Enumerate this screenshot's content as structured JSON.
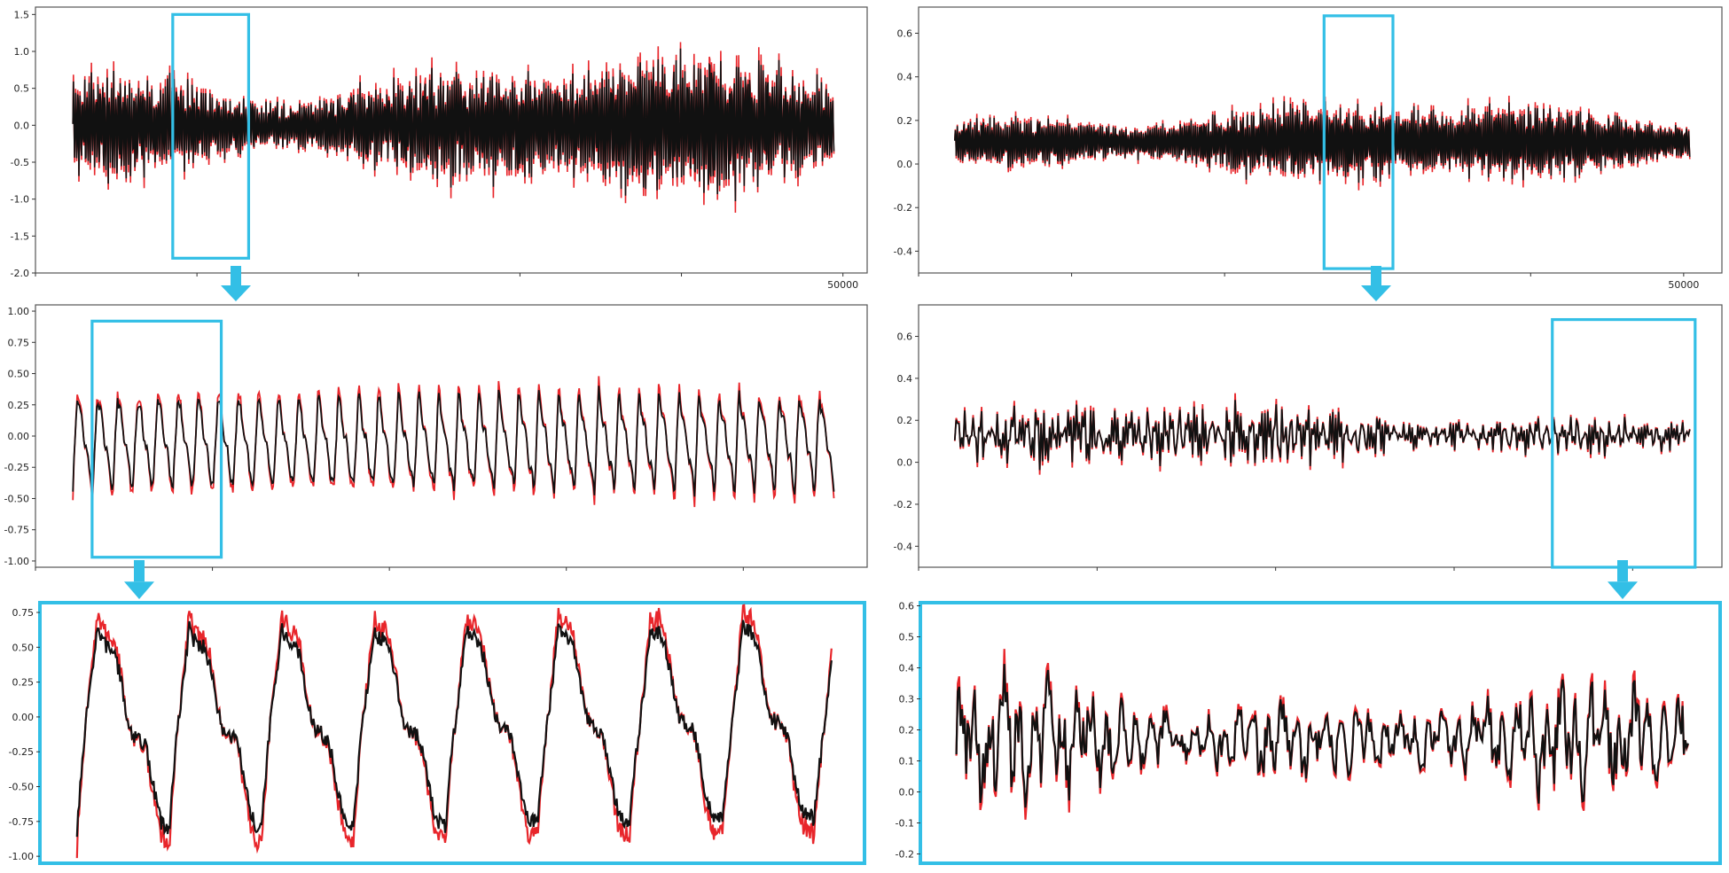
{
  "colors": {
    "prediction": "#e8262b",
    "actual": "#111111",
    "highlight": "#33bfe6",
    "frame": "#555555"
  },
  "chart_data": [
    {
      "id": "left-overview",
      "type": "line",
      "ylim": [
        -2.0,
        1.6
      ],
      "xlim": [
        0,
        51500
      ],
      "yticks": [
        1.5,
        1.0,
        0.5,
        0.0,
        -0.5,
        -1.0,
        -1.5,
        -2.0
      ],
      "ytick_labels": [
        "1.5",
        "1.0",
        "0.5",
        "0.0",
        "-0.5",
        "-1.0",
        "-1.5",
        "-2.0"
      ],
      "xticks": [
        0,
        10000,
        20000,
        30000,
        40000,
        50000
      ],
      "xtick_labels": [
        "",
        "",
        "",
        "",
        "",
        "50000"
      ],
      "signal": {
        "kind": "dense",
        "amp": 0.72,
        "center": 0.0,
        "periods": 340
      },
      "zoom_box": {
        "x": [
          8500,
          13200
        ],
        "y": [
          -1.8,
          1.5
        ]
      },
      "highlighted": false
    },
    {
      "id": "right-overview",
      "type": "line",
      "ylim": [
        -0.5,
        0.72
      ],
      "xlim": [
        0,
        52500
      ],
      "yticks": [
        0.6,
        0.4,
        0.2,
        0.0,
        -0.2,
        -0.4
      ],
      "ytick_labels": [
        "0.6",
        "0.4",
        "0.2",
        "0.0",
        "-0.2",
        "-0.4"
      ],
      "xticks": [
        0,
        10000,
        20000,
        30000,
        40000,
        50000
      ],
      "xtick_labels": [
        "",
        "",
        "",
        "",
        "",
        "50000"
      ],
      "signal": {
        "kind": "dense",
        "amp": 0.14,
        "center": 0.1,
        "periods": 340
      },
      "zoom_box": {
        "x": [
          26500,
          31000
        ],
        "y": [
          -0.48,
          0.68
        ]
      },
      "highlighted": false
    },
    {
      "id": "left-zoom",
      "type": "line",
      "ylim": [
        -1.05,
        1.05
      ],
      "xlim": [
        0,
        4700
      ],
      "yticks": [
        1.0,
        0.75,
        0.5,
        0.25,
        0.0,
        -0.25,
        -0.5,
        -0.75,
        -1.0
      ],
      "ytick_labels": [
        "1.00",
        "0.75",
        "0.50",
        "0.25",
        "0.00",
        "-0.25",
        "-0.50",
        "-0.75",
        "-1.00"
      ],
      "xticks": [
        0,
        1000,
        2000,
        3000,
        4000
      ],
      "xtick_labels": [
        "",
        "",
        "",
        "",
        ""
      ],
      "signal": {
        "kind": "sawtooth",
        "amp": 0.38,
        "center": -0.05,
        "periods": 38
      },
      "zoom_box": {
        "x": [
          320,
          1050
        ],
        "y": [
          -0.97,
          0.92
        ]
      },
      "highlighted": false
    },
    {
      "id": "right-zoom",
      "type": "line",
      "ylim": [
        -0.5,
        0.75
      ],
      "xlim": [
        0,
        4500
      ],
      "yticks": [
        0.6,
        0.4,
        0.2,
        0.0,
        -0.2,
        -0.4
      ],
      "ytick_labels": [
        "0.6",
        "0.4",
        "0.2",
        "0.0",
        "-0.2",
        "-0.4"
      ],
      "xticks": [
        0,
        1000,
        2000,
        3000,
        4000
      ],
      "xtick_labels": [
        "",
        "",
        "",
        "",
        ""
      ],
      "signal": {
        "kind": "noisy",
        "amp": 0.13,
        "center": 0.13,
        "periods": 250
      },
      "zoom_box": {
        "x": [
          3550,
          4350
        ],
        "y": [
          -0.5,
          0.68
        ]
      },
      "highlighted": false
    },
    {
      "id": "left-detail",
      "type": "line",
      "ylim": [
        -1.05,
        0.82
      ],
      "xlim": [
        0,
        730
      ],
      "yticks": [
        0.75,
        0.5,
        0.25,
        0.0,
        -0.25,
        -0.5,
        -0.75,
        -1.0
      ],
      "ytick_labels": [
        "0.75",
        "0.50",
        "0.25",
        "0.00",
        "-0.25",
        "-0.50",
        "-0.75",
        "-1.00"
      ],
      "xticks": [],
      "xtick_labels": [],
      "signal": {
        "kind": "sawtooth",
        "amp": 0.78,
        "center": -0.05,
        "periods": 8.2
      },
      "zoom_box": null,
      "highlighted": true
    },
    {
      "id": "right-detail",
      "type": "line",
      "ylim": [
        -0.23,
        0.61
      ],
      "xlim": [
        0,
        800
      ],
      "yticks": [
        0.6,
        0.5,
        0.4,
        0.3,
        0.2,
        0.1,
        0.0,
        -0.1,
        -0.2
      ],
      "ytick_labels": [
        "0.6",
        "0.5",
        "0.4",
        "0.3",
        "0.2",
        "0.1",
        "0.0",
        "-0.1",
        "-0.2"
      ],
      "xticks": [],
      "xtick_labels": [],
      "signal": {
        "kind": "noisy",
        "amp": 0.17,
        "center": 0.17,
        "periods": 50
      },
      "zoom_box": null,
      "highlighted": true
    }
  ]
}
